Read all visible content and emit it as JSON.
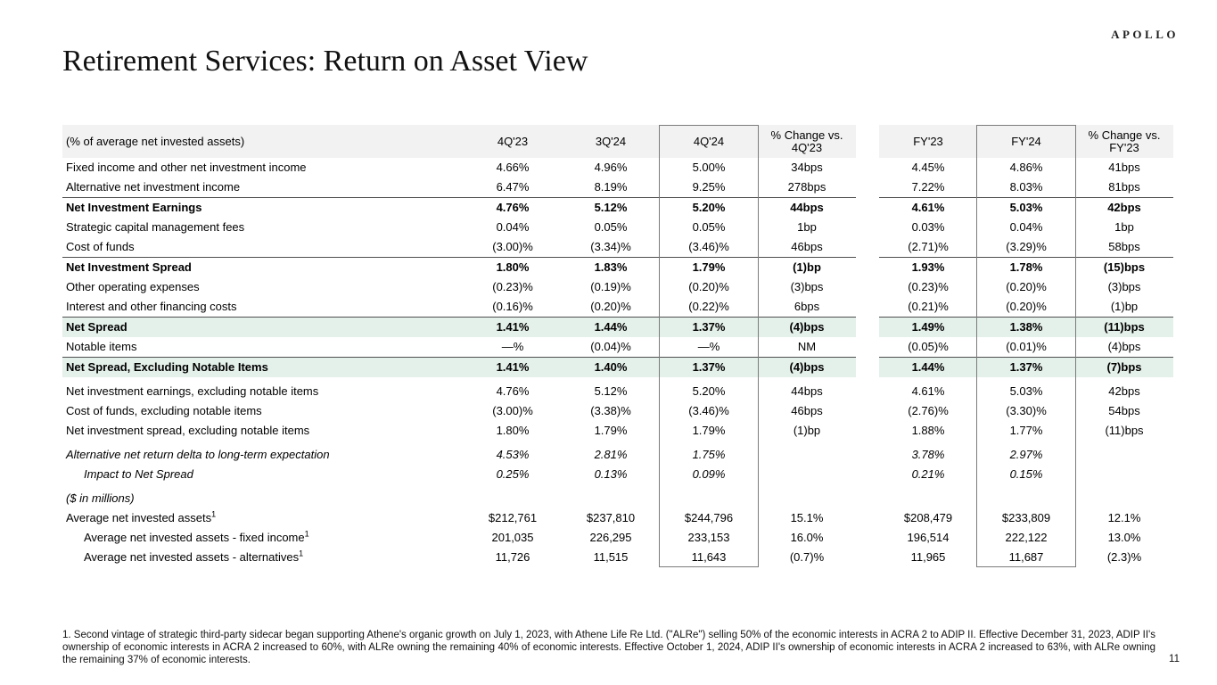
{
  "logo": "APOLLO",
  "page_title": "Retirement Services: Return on Asset View",
  "page_number": "11",
  "footnote": "1. Second vintage of strategic third-party sidecar began supporting Athene's organic growth on July 1, 2023, with Athene Life Re Ltd. (\"ALRe\") selling 50% of the economic interests in ACRA 2 to ADIP II. Effective December 31, 2023, ADIP II's ownership of economic interests in ACRA 2 increased to 60%, with ALRe owning the remaining 40% of economic interests. Effective October 1, 2024, ADIP II's ownership of economic interests in ACRA 2 increased to 63%, with ALRe owning the remaining 37% of economic interests.",
  "colors": {
    "highlight_green": "#e4f0ea",
    "header_gray": "#f2f2f2",
    "rule_dark": "#4f4f4f",
    "column_box_border": "#7c7c7c"
  },
  "table": {
    "header": {
      "label": "(% of average net invested assets)",
      "columns": [
        "4Q'23",
        "3Q'24",
        "4Q'24",
        "% Change vs. 4Q'23",
        "FY'23",
        "FY'24",
        "% Change vs. FY'23"
      ]
    },
    "rows": [
      {
        "label": "Fixed income and other net investment income",
        "values": [
          "4.66%",
          "4.96%",
          "5.00%",
          "34bps",
          "4.45%",
          "4.86%",
          "41bps"
        ]
      },
      {
        "label": "Alternative net investment income",
        "values": [
          "6.47%",
          "8.19%",
          "9.25%",
          "278bps",
          "7.22%",
          "8.03%",
          "81bps"
        ]
      },
      {
        "label": "Net Investment Earnings",
        "bold": true,
        "rule": true,
        "values": [
          "4.76%",
          "5.12%",
          "5.20%",
          "44bps",
          "4.61%",
          "5.03%",
          "42bps"
        ]
      },
      {
        "label": "Strategic capital management fees",
        "values": [
          "0.04%",
          "0.05%",
          "0.05%",
          "1bp",
          "0.03%",
          "0.04%",
          "1bp"
        ]
      },
      {
        "label": "Cost of funds",
        "values": [
          "(3.00)%",
          "(3.34)%",
          "(3.46)%",
          "46bps",
          "(2.71)%",
          "(3.29)%",
          "58bps"
        ]
      },
      {
        "label": "Net Investment Spread",
        "bold": true,
        "rule": true,
        "values": [
          "1.80%",
          "1.83%",
          "1.79%",
          "(1)bp",
          "1.93%",
          "1.78%",
          "(15)bps"
        ]
      },
      {
        "label": "Other operating expenses",
        "values": [
          "(0.23)%",
          "(0.19)%",
          "(0.20)%",
          "(3)bps",
          "(0.23)%",
          "(0.20)%",
          "(3)bps"
        ]
      },
      {
        "label": "Interest and other financing costs",
        "values": [
          "(0.16)%",
          "(0.20)%",
          "(0.22)%",
          "6bps",
          "(0.21)%",
          "(0.20)%",
          "(1)bp"
        ]
      },
      {
        "label": "Net Spread",
        "bold": true,
        "rule": true,
        "green": true,
        "values": [
          "1.41%",
          "1.44%",
          "1.37%",
          "(4)bps",
          "1.49%",
          "1.38%",
          "(11)bps"
        ]
      },
      {
        "label": "Notable items",
        "values": [
          "—%",
          "(0.04)%",
          "—%",
          "NM",
          "(0.05)%",
          "(0.01)%",
          "(4)bps"
        ]
      },
      {
        "label": "Net Spread, Excluding Notable Items",
        "bold": true,
        "rule": true,
        "green": true,
        "values": [
          "1.41%",
          "1.40%",
          "1.37%",
          "(4)bps",
          "1.44%",
          "1.37%",
          "(7)bps"
        ]
      },
      {
        "label": "Net investment earnings, excluding notable items",
        "gap": true,
        "values": [
          "4.76%",
          "5.12%",
          "5.20%",
          "44bps",
          "4.61%",
          "5.03%",
          "42bps"
        ]
      },
      {
        "label": "Cost of funds, excluding notable items",
        "values": [
          "(3.00)%",
          "(3.38)%",
          "(3.46)%",
          "46bps",
          "(2.76)%",
          "(3.30)%",
          "54bps"
        ]
      },
      {
        "label": "Net investment spread, excluding notable items",
        "values": [
          "1.80%",
          "1.79%",
          "1.79%",
          "(1)bp",
          "1.88%",
          "1.77%",
          "(11)bps"
        ]
      },
      {
        "label": "Alternative net return delta to long-term expectation",
        "italic": true,
        "gap": true,
        "values": [
          "4.53%",
          "2.81%",
          "1.75%",
          "",
          "3.78%",
          "2.97%",
          ""
        ]
      },
      {
        "label": "Impact to Net Spread",
        "italic": true,
        "indent": 1,
        "values": [
          "0.25%",
          "0.13%",
          "0.09%",
          "",
          "0.21%",
          "0.15%",
          ""
        ]
      },
      {
        "label": "($ in millions)",
        "italic": true,
        "gap": true,
        "values": [
          "",
          "",
          "",
          "",
          "",
          "",
          ""
        ]
      },
      {
        "label": "Average net invested assets",
        "sup": "1",
        "values": [
          "$212,761",
          "$237,810",
          "$244,796",
          "15.1%",
          "$208,479",
          "$233,809",
          "12.1%"
        ]
      },
      {
        "label": "Average net invested assets - fixed income",
        "sup": "1",
        "indent": 1,
        "values": [
          "201,035",
          "226,295",
          "233,153",
          "16.0%",
          "196,514",
          "222,122",
          "13.0%"
        ]
      },
      {
        "label": "Average net invested assets - alternatives",
        "sup": "1",
        "indent": 1,
        "values": [
          "11,726",
          "11,515",
          "11,643",
          "(0.7)%",
          "11,965",
          "11,687",
          "(2.3)%"
        ]
      }
    ]
  }
}
